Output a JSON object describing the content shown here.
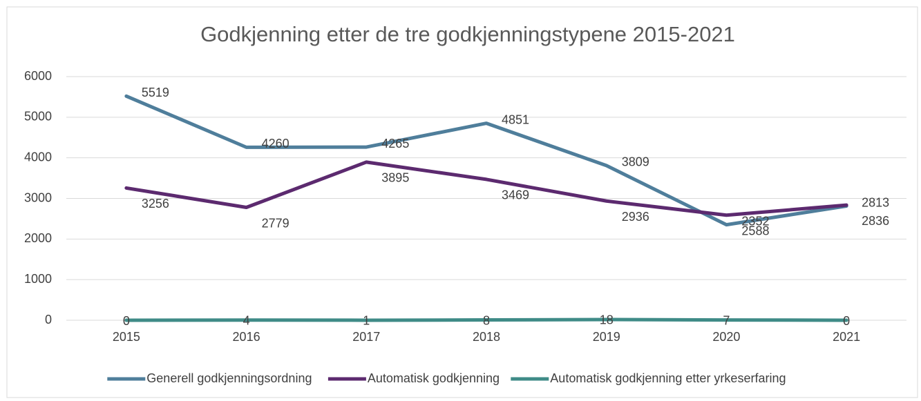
{
  "chart_data": {
    "type": "line",
    "title": "Godkjenning etter de tre godkjenningstypene 2015-2021",
    "categories": [
      "2015",
      "2016",
      "2017",
      "2018",
      "2019",
      "2020",
      "2021"
    ],
    "series": [
      {
        "name": "Generell godkjenningsordning",
        "color": "#4f7e9b",
        "values": [
          5519,
          4260,
          4265,
          4851,
          3809,
          2352,
          2813
        ]
      },
      {
        "name": "Automatisk godkjenning",
        "color": "#5c2a6f",
        "values": [
          3256,
          2779,
          3895,
          3469,
          2936,
          2588,
          2836
        ]
      },
      {
        "name": "Automatisk godkjenning etter yrkeserfaring",
        "color": "#3f8b87",
        "values": [
          0,
          4,
          1,
          8,
          18,
          7,
          0
        ]
      }
    ],
    "ylim": [
      0,
      6000
    ],
    "yticks": [
      0,
      1000,
      2000,
      3000,
      4000,
      5000,
      6000
    ],
    "grid": true,
    "legend": "bottom"
  }
}
